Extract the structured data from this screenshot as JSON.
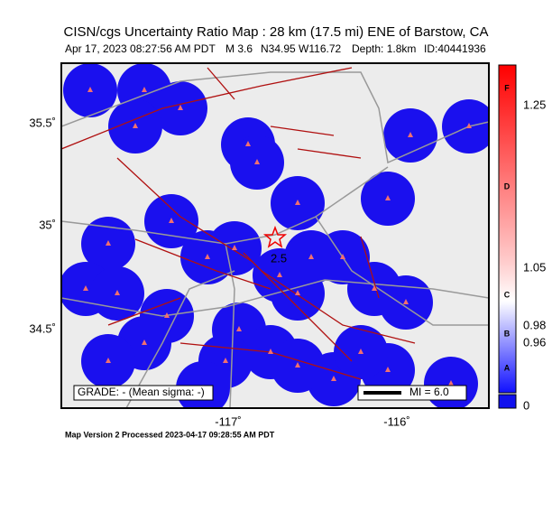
{
  "header": {
    "title": "CISN/cgs Uncertainty Ratio Map : 28 km (17.5 mi) ENE of Barstow, CA",
    "date": "Apr 17, 2023 08:27:56 AM PDT",
    "magnitude": "M 3.6",
    "location": "N34.95 W116.72",
    "depth": "Depth: 1.8km",
    "id": "ID:40441936"
  },
  "map": {
    "lat_labels": [
      "35.5˚",
      "35˚",
      "34.5˚"
    ],
    "lon_labels": [
      "-117˚",
      "-116˚"
    ],
    "contour_label": "2.5",
    "grade": "GRADE: - (Mean sigma: -)",
    "scale": "MI = 6.0"
  },
  "colorbar": {
    "letters": [
      "F",
      "D",
      "C",
      "B",
      "A"
    ],
    "values": [
      "1.25",
      "1.05",
      "0.98",
      "0.96",
      "0"
    ]
  },
  "footer": "Map Version 2 Processed 2023-04-17 09:28:55 AM PDT"
}
